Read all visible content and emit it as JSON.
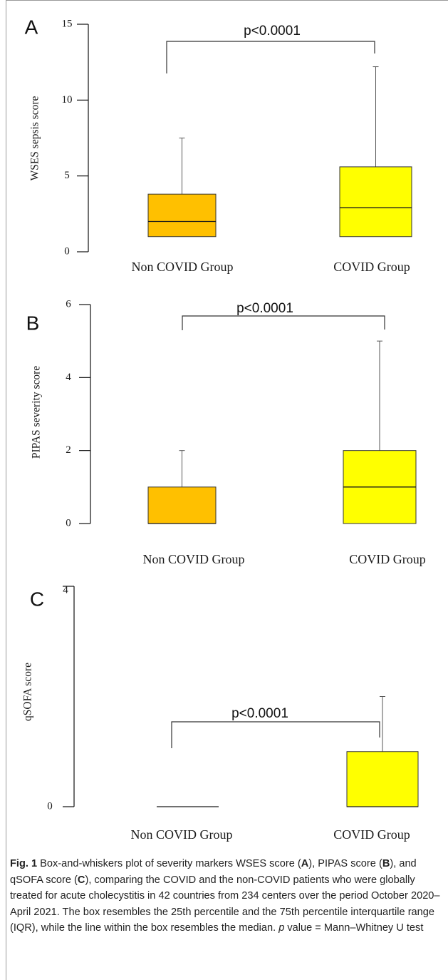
{
  "chart_data": [
    {
      "type": "box",
      "panel_label": "A",
      "ylabel": "WSES sepsis score",
      "yticks": [
        0,
        5,
        10,
        15
      ],
      "ylim": [
        0,
        15
      ],
      "categories": [
        "Non COVID Group",
        "COVID Group"
      ],
      "colors": [
        "#FFC000",
        "#FFFF00"
      ],
      "boxes": [
        {
          "name": "Non COVID Group",
          "min": 1,
          "q1": 1,
          "median": 2,
          "q3": 3.8,
          "max": 7.5
        },
        {
          "name": "COVID Group",
          "min": 1,
          "q1": 1,
          "median": 2.9,
          "q3": 5.6,
          "max": 12.2
        }
      ],
      "annotation": "p<0.0001"
    },
    {
      "type": "box",
      "panel_label": "B",
      "ylabel": "PIPAS severity score",
      "yticks": [
        0,
        2,
        4,
        6
      ],
      "ylim": [
        0,
        6
      ],
      "categories": [
        "Non COVID Group",
        "COVID Group"
      ],
      "colors": [
        "#FFC000",
        "#FFFF00"
      ],
      "boxes": [
        {
          "name": "Non COVID Group",
          "min": 0,
          "q1": 0,
          "median": 0,
          "q3": 1,
          "max": 2
        },
        {
          "name": "COVID Group",
          "min": 0,
          "q1": 0,
          "median": 1,
          "q3": 2,
          "max": 5
        }
      ],
      "annotation": "p<0.0001"
    },
    {
      "type": "box",
      "panel_label": "C",
      "ylabel": "qSOFA score",
      "yticks": [
        0,
        4
      ],
      "ylim": [
        0,
        4
      ],
      "categories": [
        "Non COVID Group",
        "COVID Group"
      ],
      "colors": [
        "#FFC000",
        "#FFFF00"
      ],
      "boxes": [
        {
          "name": "Non COVID Group",
          "min": 0,
          "q1": 0,
          "median": 0,
          "q3": 0,
          "max": 0
        },
        {
          "name": "COVID Group",
          "min": 0,
          "q1": 0,
          "median": 0,
          "q3": 1,
          "max": 2
        }
      ],
      "annotation": "p<0.0001"
    }
  ],
  "caption": {
    "fig_label": "Fig. 1",
    "segments": [
      {
        "text": "  Box-and-whiskers plot of severity markers WSES score (",
        "bold": false,
        "italic": false
      },
      {
        "text": "A",
        "bold": true,
        "italic": false
      },
      {
        "text": "), PIPAS score (",
        "bold": false,
        "italic": false
      },
      {
        "text": "B",
        "bold": true,
        "italic": false
      },
      {
        "text": "), and qSOFA score (",
        "bold": false,
        "italic": false
      },
      {
        "text": "C",
        "bold": true,
        "italic": false
      },
      {
        "text": "), comparing the COVID and the non-COVID patients who were globally treated for acute cholecystitis in 42 countries from 234 centers over the period October 2020–April 2021. The box resembles the 25th percentile and the 75th percentile interquartile range (IQR), while the line within the box resembles the median. ",
        "bold": false,
        "italic": false
      },
      {
        "text": "p",
        "bold": false,
        "italic": true
      },
      {
        "text": " value = Mann–Whitney U test",
        "bold": false,
        "italic": false
      }
    ]
  }
}
